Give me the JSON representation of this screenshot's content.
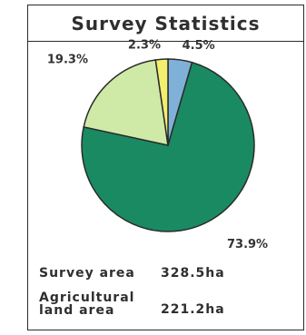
{
  "title": "Survey Statistics",
  "chart_data": {
    "type": "pie",
    "slices": [
      {
        "label": "4.5%",
        "value": 4.5,
        "color": "#7fb0d8"
      },
      {
        "label": "73.9%",
        "value": 73.9,
        "color": "#1a8a62"
      },
      {
        "label": "19.3%",
        "value": 19.3,
        "color": "#cfe9a6"
      },
      {
        "label": "2.3%",
        "value": 2.3,
        "color": "#f2ef6e"
      }
    ]
  },
  "stats": {
    "survey_area_label": "Survey area",
    "survey_area_value": "328.5ha",
    "agri_label_line1": "Agricultural",
    "agri_label_line2": "land area",
    "agri_value": "221.2ha"
  }
}
